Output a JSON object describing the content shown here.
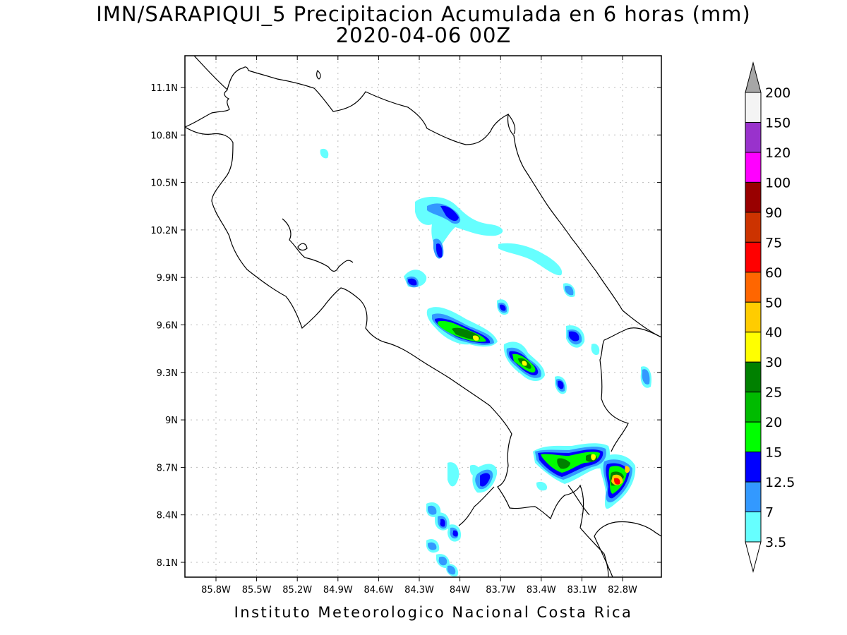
{
  "title": {
    "line1": "IMN/SARAPIQUI_5 Precipitacion Acumulada en 6 horas (mm)",
    "line2": "2020-04-06 00Z"
  },
  "credit": "Instituto Meteorologico Nacional Costa Rica",
  "map": {
    "lat_ticks": [
      "11.1N",
      "10.8N",
      "10.5N",
      "10.2N",
      "9.9N",
      "9.6N",
      "9.3N",
      "9N",
      "8.7N",
      "8.4N",
      "8.1N"
    ],
    "lon_ticks": [
      "85.8W",
      "85.5W",
      "85.2W",
      "84.9W",
      "84.6W",
      "84.3W",
      "84W",
      "83.7W",
      "83.4W",
      "83.1W",
      "82.8W"
    ],
    "grid": true
  },
  "legend": {
    "labels": [
      "200",
      "150",
      "120",
      "100",
      "90",
      "75",
      "60",
      "50",
      "40",
      "30",
      "25",
      "20",
      "15",
      "12.5",
      "7",
      "3.5"
    ],
    "colors": [
      "#f4f4f4",
      "#9932cc",
      "#ff00ff",
      "#990000",
      "#cc3300",
      "#ff0000",
      "#ff6600",
      "#ffcc00",
      "#ffff00",
      "#008000",
      "#00bb00",
      "#00ff00",
      "#0000ff",
      "#3399ff",
      "#66ffff"
    ],
    "over_color": "#a6a6a6",
    "under_color": "#ffffff"
  }
}
